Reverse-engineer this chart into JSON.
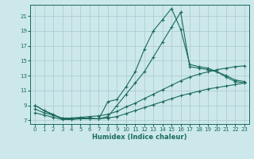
{
  "xlabel": "Humidex (Indice chaleur)",
  "bg_color": "#cce8eb",
  "grid_color": "#aac8cc",
  "line_color": "#1a6b5a",
  "xlim": [
    -0.5,
    23.5
  ],
  "ylim": [
    6.5,
    22.5
  ],
  "xticks": [
    0,
    1,
    2,
    3,
    4,
    5,
    6,
    7,
    8,
    9,
    10,
    11,
    12,
    13,
    14,
    15,
    16,
    17,
    18,
    19,
    20,
    21,
    22,
    23
  ],
  "yticks": [
    7,
    9,
    11,
    13,
    15,
    17,
    19,
    21
  ],
  "series": [
    {
      "x": [
        0,
        1,
        2,
        3,
        4,
        5,
        6,
        7,
        8,
        9,
        10,
        11,
        12,
        13,
        14,
        15,
        16,
        17,
        18,
        19,
        20,
        21,
        22,
        23
      ],
      "y": [
        9.0,
        8.3,
        7.8,
        7.2,
        7.2,
        7.3,
        7.2,
        7.2,
        9.5,
        9.8,
        11.5,
        13.5,
        16.5,
        19.0,
        20.5,
        22.0,
        19.2,
        14.5,
        14.2,
        14.0,
        13.5,
        13.0,
        12.4,
        12.2
      ]
    },
    {
      "x": [
        0,
        1,
        2,
        3,
        4,
        5,
        6,
        7,
        8,
        9,
        10,
        11,
        12,
        13,
        14,
        15,
        16,
        17,
        18,
        19,
        20,
        21,
        22,
        23
      ],
      "y": [
        9.0,
        8.3,
        7.7,
        7.2,
        7.2,
        7.3,
        7.3,
        7.2,
        7.5,
        9.0,
        10.5,
        12.0,
        13.5,
        15.5,
        17.5,
        19.5,
        21.5,
        14.2,
        14.0,
        13.8,
        13.5,
        12.8,
        12.2,
        12.0
      ]
    },
    {
      "x": [
        0,
        1,
        2,
        3,
        4,
        5,
        6,
        7,
        8,
        9,
        10,
        11,
        12,
        13,
        14,
        15,
        16,
        17,
        18,
        19,
        20,
        21,
        22,
        23
      ],
      "y": [
        8.5,
        8.0,
        7.7,
        7.3,
        7.3,
        7.4,
        7.5,
        7.6,
        7.8,
        8.2,
        8.8,
        9.3,
        9.9,
        10.5,
        11.1,
        11.7,
        12.3,
        12.8,
        13.2,
        13.5,
        13.8,
        14.0,
        14.2,
        14.3
      ]
    },
    {
      "x": [
        0,
        1,
        2,
        3,
        4,
        5,
        6,
        7,
        8,
        9,
        10,
        11,
        12,
        13,
        14,
        15,
        16,
        17,
        18,
        19,
        20,
        21,
        22,
        23
      ],
      "y": [
        8.0,
        7.7,
        7.4,
        7.1,
        7.1,
        7.2,
        7.2,
        7.2,
        7.3,
        7.5,
        7.9,
        8.3,
        8.7,
        9.1,
        9.5,
        9.9,
        10.3,
        10.6,
        10.9,
        11.2,
        11.4,
        11.6,
        11.8,
        12.0
      ]
    }
  ]
}
